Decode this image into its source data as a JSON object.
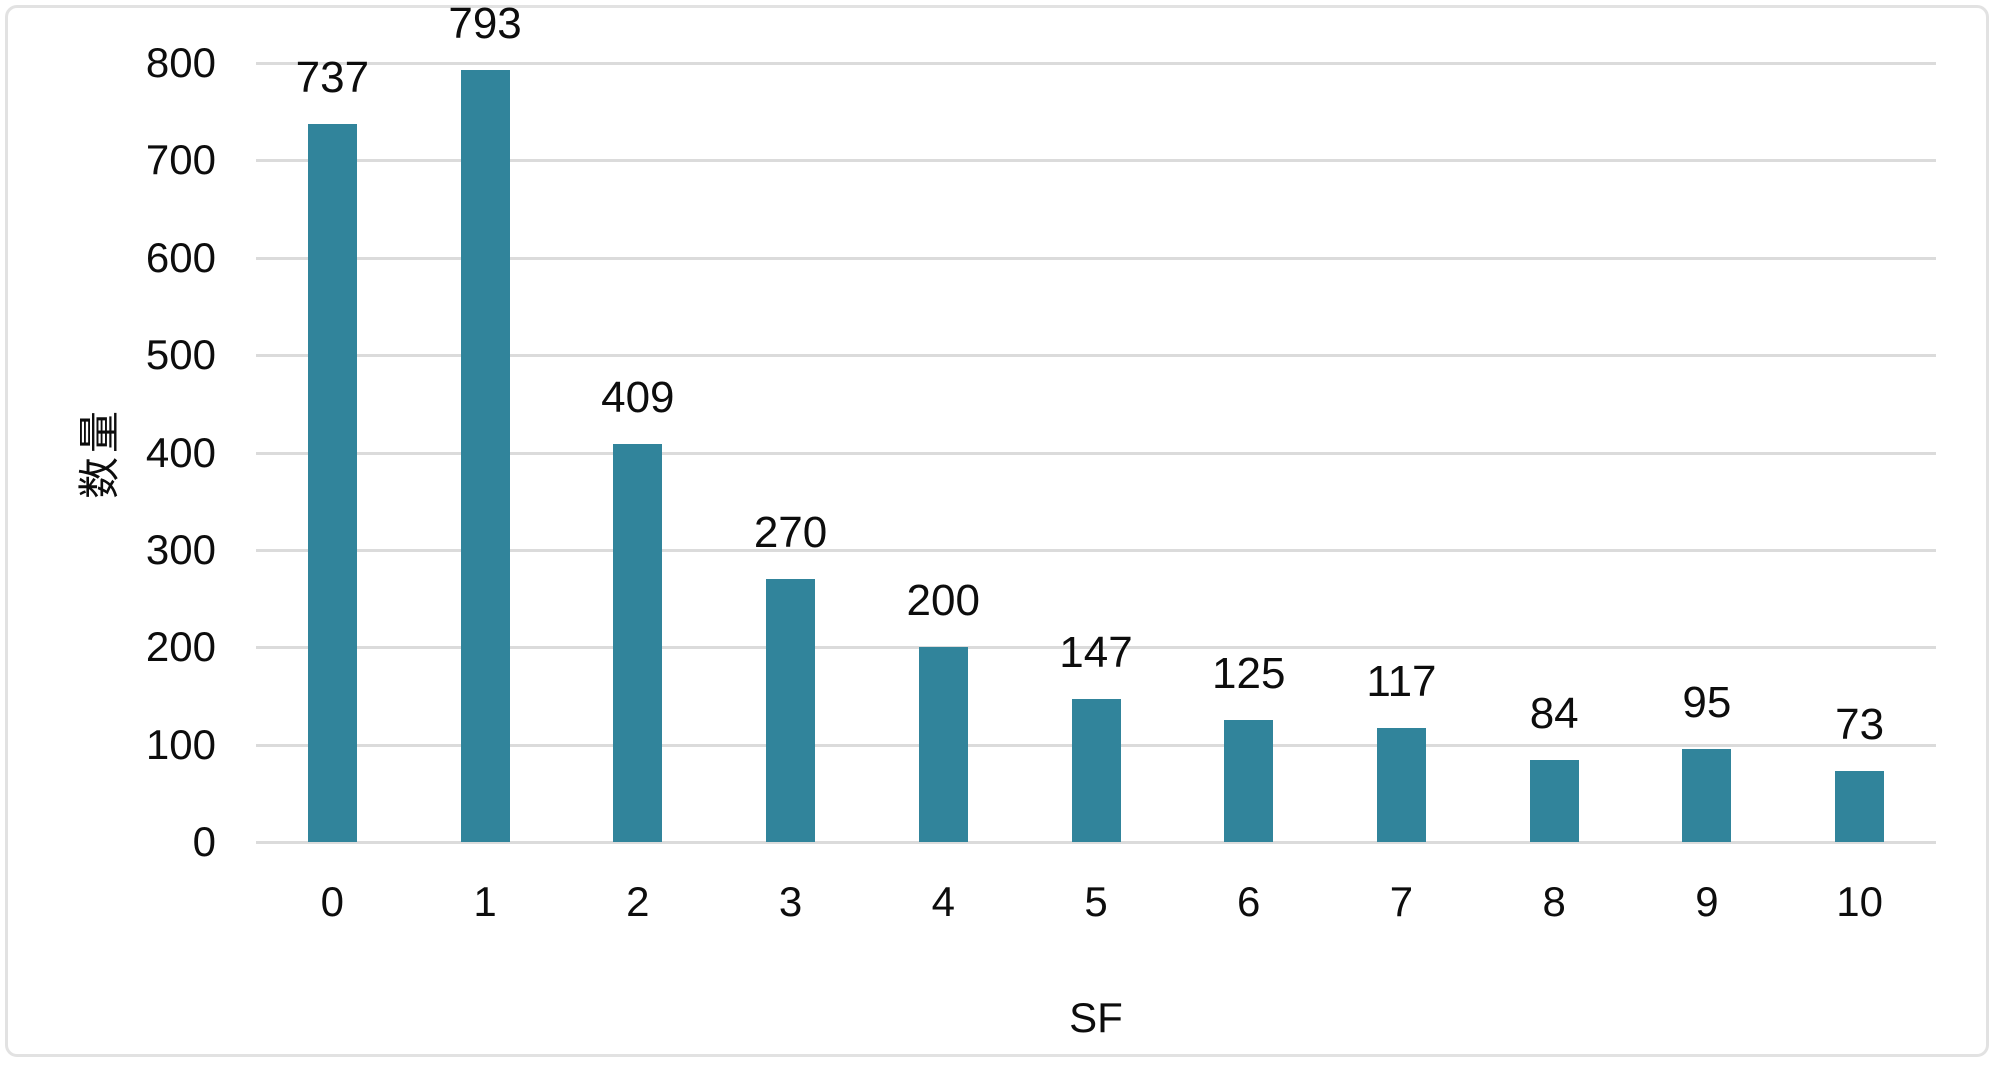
{
  "chart_data": {
    "type": "bar",
    "title": "",
    "categories": [
      "0",
      "1",
      "2",
      "3",
      "4",
      "5",
      "6",
      "7",
      "8",
      "9",
      "10"
    ],
    "values": [
      737,
      793,
      409,
      270,
      200,
      147,
      125,
      117,
      84,
      95,
      73
    ],
    "data_labels": [
      "737",
      "793",
      "409",
      "270",
      "200",
      "147",
      "125",
      "117",
      "84",
      "95",
      "73"
    ],
    "xlabel": "SF",
    "ylabel": "数量",
    "ylim": [
      0,
      800
    ],
    "yticks": [
      0,
      100,
      200,
      300,
      400,
      500,
      600,
      700,
      800
    ],
    "grid": "horizontal",
    "legend": "none",
    "colors": {
      "bar": "#31849b",
      "gridline": "#dbdbdb",
      "text": "#0d0d0d",
      "chart_border": "#e2e2e2",
      "background": "#ffffff"
    }
  }
}
